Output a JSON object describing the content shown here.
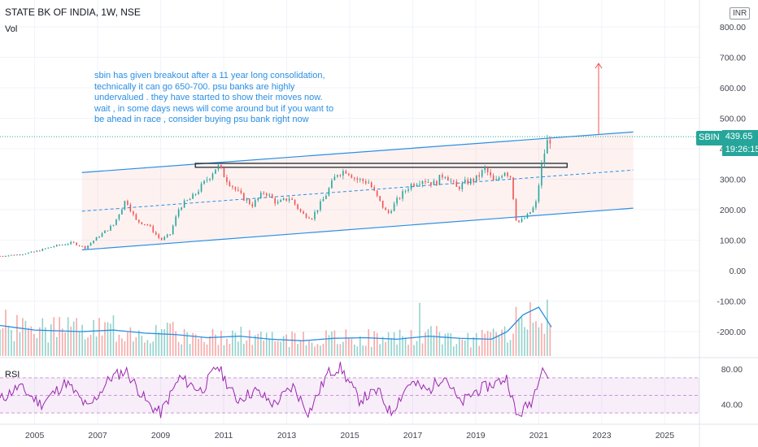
{
  "header": {
    "title": "STATE BK OF INDIA, 1W, NSE",
    "vol_label": "Vol",
    "currency": "INR"
  },
  "annotation": {
    "lines": [
      "sbin has given breakout after a 11 year long consolidation,",
      "technically it can go 650-700. psu banks are highly",
      "undervalued . they have started to show their moves now.",
      "wait , in some days news will come around but if you want to",
      "be ahead in race , consider buying psu bank right now"
    ]
  },
  "price_tag": {
    "symbol": "SBIN",
    "price": "439.65",
    "countdown": "19:26:15"
  },
  "rsi_label": "RSI",
  "colors": {
    "up": "#26a69a",
    "down": "#ef5350",
    "channel": "#2b8fe4",
    "rsi": "#9c27b0",
    "target_arrow": "#ef5350"
  },
  "chart_data": {
    "type": "line",
    "x_ticks": [
      "2005",
      "2007",
      "2009",
      "2011",
      "2013",
      "2015",
      "2017",
      "2019",
      "2021",
      "2023",
      "2025"
    ],
    "price_axis_ticks": [
      "800.00",
      "700.00",
      "600.00",
      "500.00",
      "400.00",
      "300.00",
      "200.00",
      "100.00",
      "0.00",
      "-100.00",
      "-200.00"
    ],
    "price_ylim": [
      -240,
      820
    ],
    "rsi_axis_ticks": [
      "80.00",
      "40.00"
    ],
    "rsi_bands": [
      70,
      50,
      30
    ],
    "last_price": 439.65,
    "target_arrow_to": 680,
    "resistance_box": {
      "x": [
        2010.1,
        2021.9
      ],
      "y": [
        339,
        352
      ]
    },
    "channel": {
      "x": [
        2006.5,
        2024.0
      ],
      "upper": [
        322,
        455
      ],
      "middle": [
        195,
        330
      ],
      "lower": [
        68,
        205
      ]
    },
    "price_series": {
      "name": "SBIN",
      "x": [
        2003.9,
        2004.5,
        2005.0,
        2005.6,
        2006.2,
        2006.6,
        2007.0,
        2007.5,
        2007.9,
        2008.2,
        2008.6,
        2009.0,
        2009.3,
        2009.6,
        2010.0,
        2010.4,
        2010.8,
        2011.1,
        2011.5,
        2011.9,
        2012.3,
        2012.7,
        2013.1,
        2013.5,
        2013.8,
        2014.2,
        2014.6,
        2014.9,
        2015.2,
        2015.6,
        2015.9,
        2016.2,
        2016.5,
        2016.9,
        2017.3,
        2017.7,
        2018.0,
        2018.4,
        2018.7,
        2019.0,
        2019.3,
        2019.6,
        2019.9,
        2020.1,
        2020.3,
        2020.6,
        2020.9,
        2021.1,
        2021.25,
        2021.4
      ],
      "values": [
        48,
        53,
        62,
        80,
        92,
        75,
        110,
        150,
        235,
        165,
        150,
        100,
        120,
        210,
        240,
        290,
        345,
        300,
        250,
        215,
        260,
        220,
        240,
        185,
        175,
        240,
        320,
        330,
        300,
        290,
        235,
        185,
        230,
        280,
        300,
        285,
        320,
        270,
        290,
        300,
        335,
        285,
        330,
        310,
        155,
        175,
        215,
        350,
        420,
        435
      ]
    },
    "volume_series": {
      "name": "Vol",
      "x": [
        2003.9,
        2005.0,
        2006.5,
        2007.5,
        2008.5,
        2009.5,
        2010.5,
        2011.5,
        2012.5,
        2013.5,
        2014.5,
        2015.5,
        2016.5,
        2017.5,
        2018.5,
        2019.5,
        2020.0,
        2020.5,
        2021.0,
        2021.4
      ],
      "ma_values": [
        -180,
        -195,
        -200,
        -195,
        -205,
        -210,
        -220,
        -215,
        -225,
        -230,
        -222,
        -220,
        -225,
        -215,
        -222,
        -225,
        -200,
        -145,
        -120,
        -185
      ]
    },
    "rsi_series": {
      "name": "RSI",
      "x": [
        2003.9,
        2004.5,
        2005.2,
        2006.0,
        2006.7,
        2007.4,
        2007.9,
        2008.6,
        2009.0,
        2009.6,
        2010.3,
        2010.8,
        2011.4,
        2012.0,
        2012.6,
        2013.2,
        2013.7,
        2014.3,
        2014.7,
        2015.3,
        2015.9,
        2016.3,
        2016.9,
        2017.5,
        2018.0,
        2018.5,
        2019.0,
        2019.5,
        2020.0,
        2020.3,
        2020.8,
        2021.1,
        2021.3
      ],
      "values": [
        45,
        60,
        40,
        65,
        35,
        70,
        78,
        40,
        30,
        70,
        55,
        84,
        45,
        55,
        40,
        60,
        30,
        75,
        82,
        45,
        55,
        30,
        65,
        55,
        74,
        40,
        55,
        62,
        70,
        25,
        45,
        85,
        70
      ]
    }
  }
}
